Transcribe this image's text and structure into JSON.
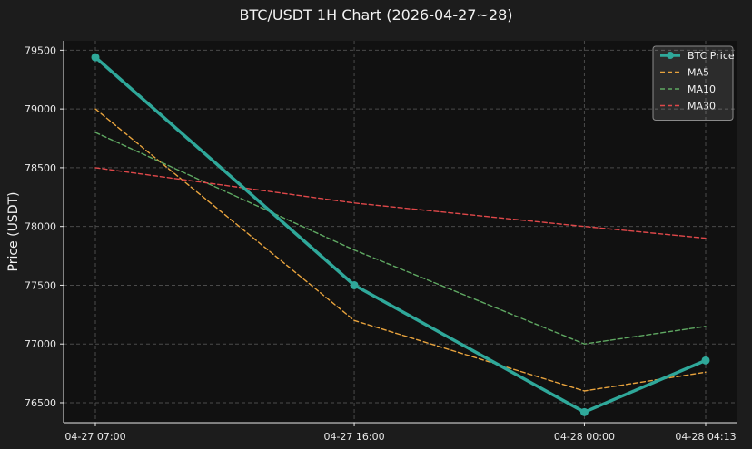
{
  "chart_data": {
    "type": "line",
    "title": "BTC/USDT 1H Chart (2026-04-27~28)",
    "xlabel": "",
    "ylabel": "Price (USDT)",
    "x": [
      "04-27 07:00",
      "04-27 16:00",
      "04-28 00:00",
      "04-28 04:13"
    ],
    "x_hours": [
      0,
      9,
      17,
      21.2167
    ],
    "y_ticks": [
      76500,
      77000,
      77500,
      78000,
      78500,
      79000,
      79500
    ],
    "ylim": [
      76330,
      79580
    ],
    "grid": true,
    "legend_position": "top-right",
    "background_color": "#111111",
    "figure_color": "#1c1c1c",
    "series": [
      {
        "name": "BTC Price",
        "values": [
          79440,
          77500,
          76420,
          76860
        ],
        "color": "#2fa89a",
        "style": "solid",
        "markers": true
      },
      {
        "name": "MA5",
        "values": [
          79000,
          77200,
          76600,
          76760
        ],
        "color": "#e8a33d",
        "style": "dashed",
        "markers": false
      },
      {
        "name": "MA10",
        "values": [
          78800,
          77800,
          77000,
          77150
        ],
        "color": "#5fa862",
        "style": "dashed",
        "markers": false
      },
      {
        "name": "MA30",
        "values": [
          78500,
          78200,
          78000,
          77900
        ],
        "color": "#e0484a",
        "style": "dashed",
        "markers": false
      }
    ]
  }
}
